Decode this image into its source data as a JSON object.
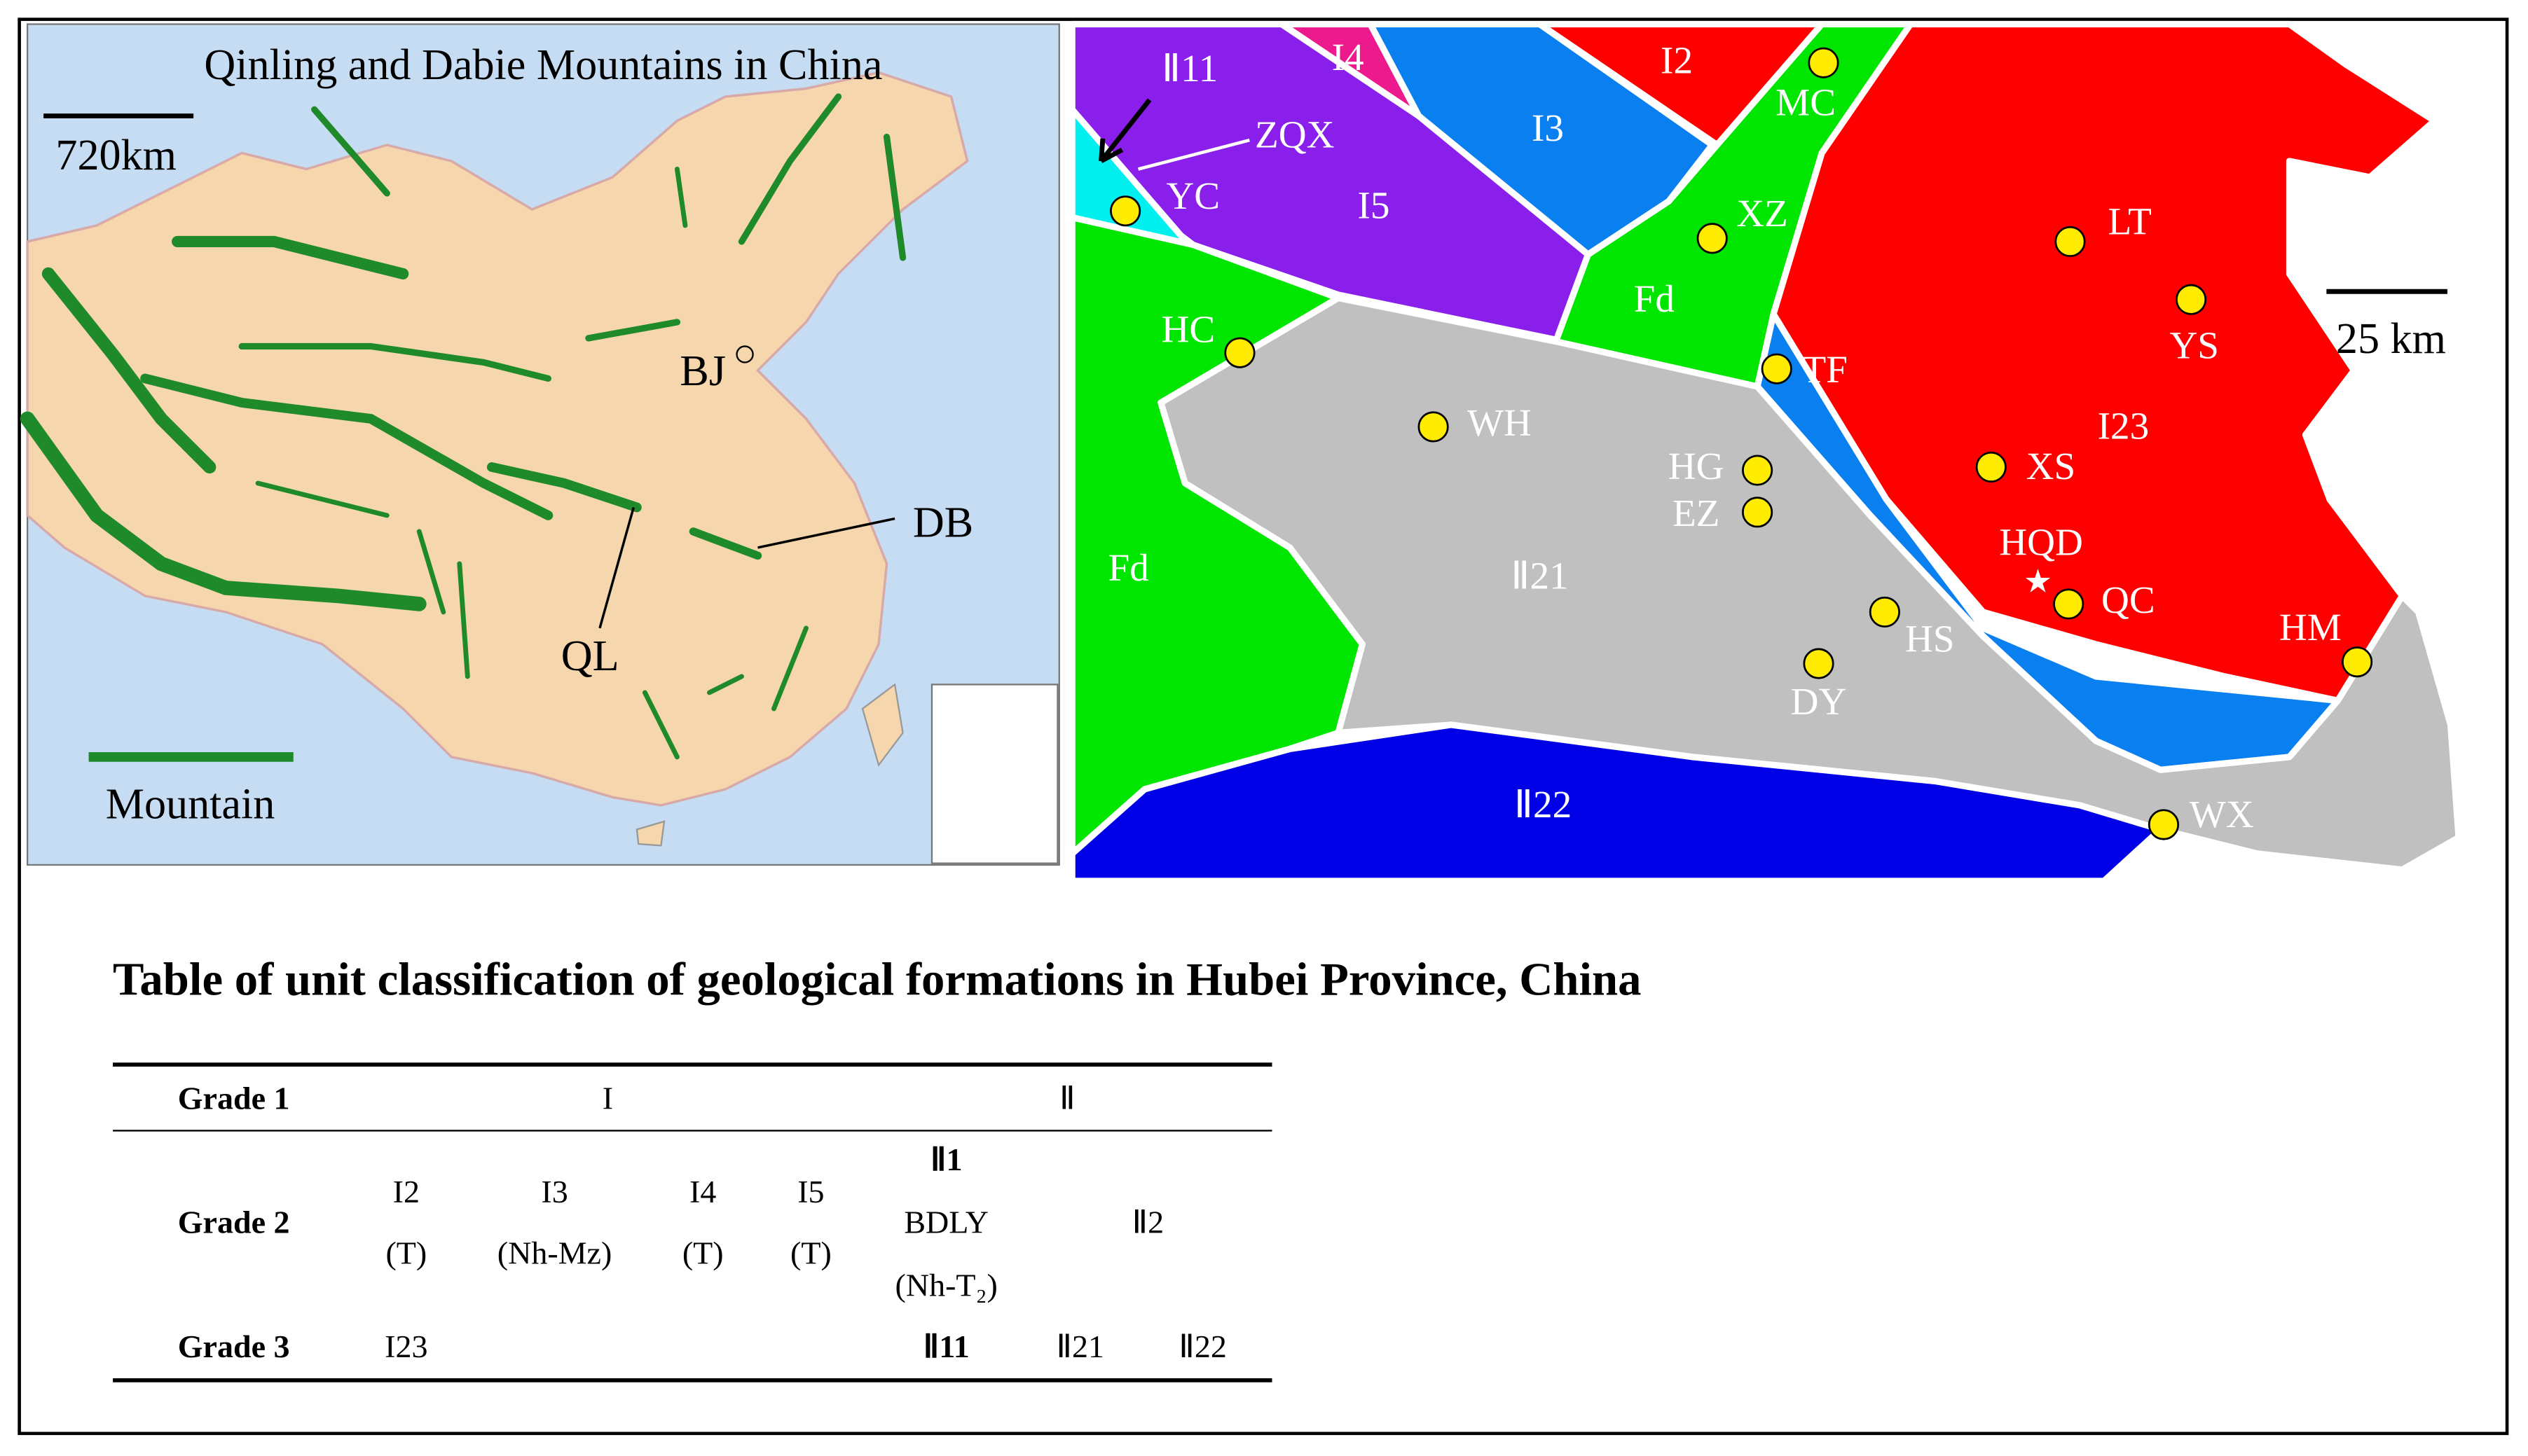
{
  "left_map": {
    "title": "Qinling and Dabie Mountains in China",
    "scale": "720km",
    "labels": [
      "BJ",
      "DB",
      "QL"
    ],
    "legend": "Mountain"
  },
  "right_map": {
    "regions": [
      "Ⅱ11",
      "I4",
      "I2",
      "I3",
      "I5",
      "Fd",
      "Fd",
      "I23",
      "Ⅱ21",
      "Ⅱ22"
    ],
    "arrow_label": "ZQX",
    "sites": [
      "MC",
      "XZ",
      "LT",
      "YS",
      "YC",
      "HC",
      "TF",
      "WH",
      "HG",
      "EZ",
      "XS",
      "HQD",
      "QC",
      "HS",
      "DY",
      "HM",
      "WX"
    ],
    "scale": "25 km"
  },
  "table": {
    "title": "Table of unit classification of geological formations in Hubei Province, China",
    "grade1": {
      "label": "Grade 1",
      "cells": [
        "I",
        "Ⅱ"
      ]
    },
    "grade2": {
      "label": "Grade 2",
      "cells": [
        [
          "I2",
          "(T)"
        ],
        [
          "I3",
          "(Nh-Mz)"
        ],
        [
          "I4",
          "(T)"
        ],
        [
          "I5",
          "(T)"
        ],
        [
          "Ⅱ1",
          "BDLY",
          "(Nh-T₂)"
        ],
        [
          "Ⅱ2"
        ]
      ]
    },
    "grade3": {
      "label": "Grade 3",
      "cells": [
        "I23",
        "Ⅱ11",
        "Ⅱ21",
        "Ⅱ22"
      ]
    }
  }
}
